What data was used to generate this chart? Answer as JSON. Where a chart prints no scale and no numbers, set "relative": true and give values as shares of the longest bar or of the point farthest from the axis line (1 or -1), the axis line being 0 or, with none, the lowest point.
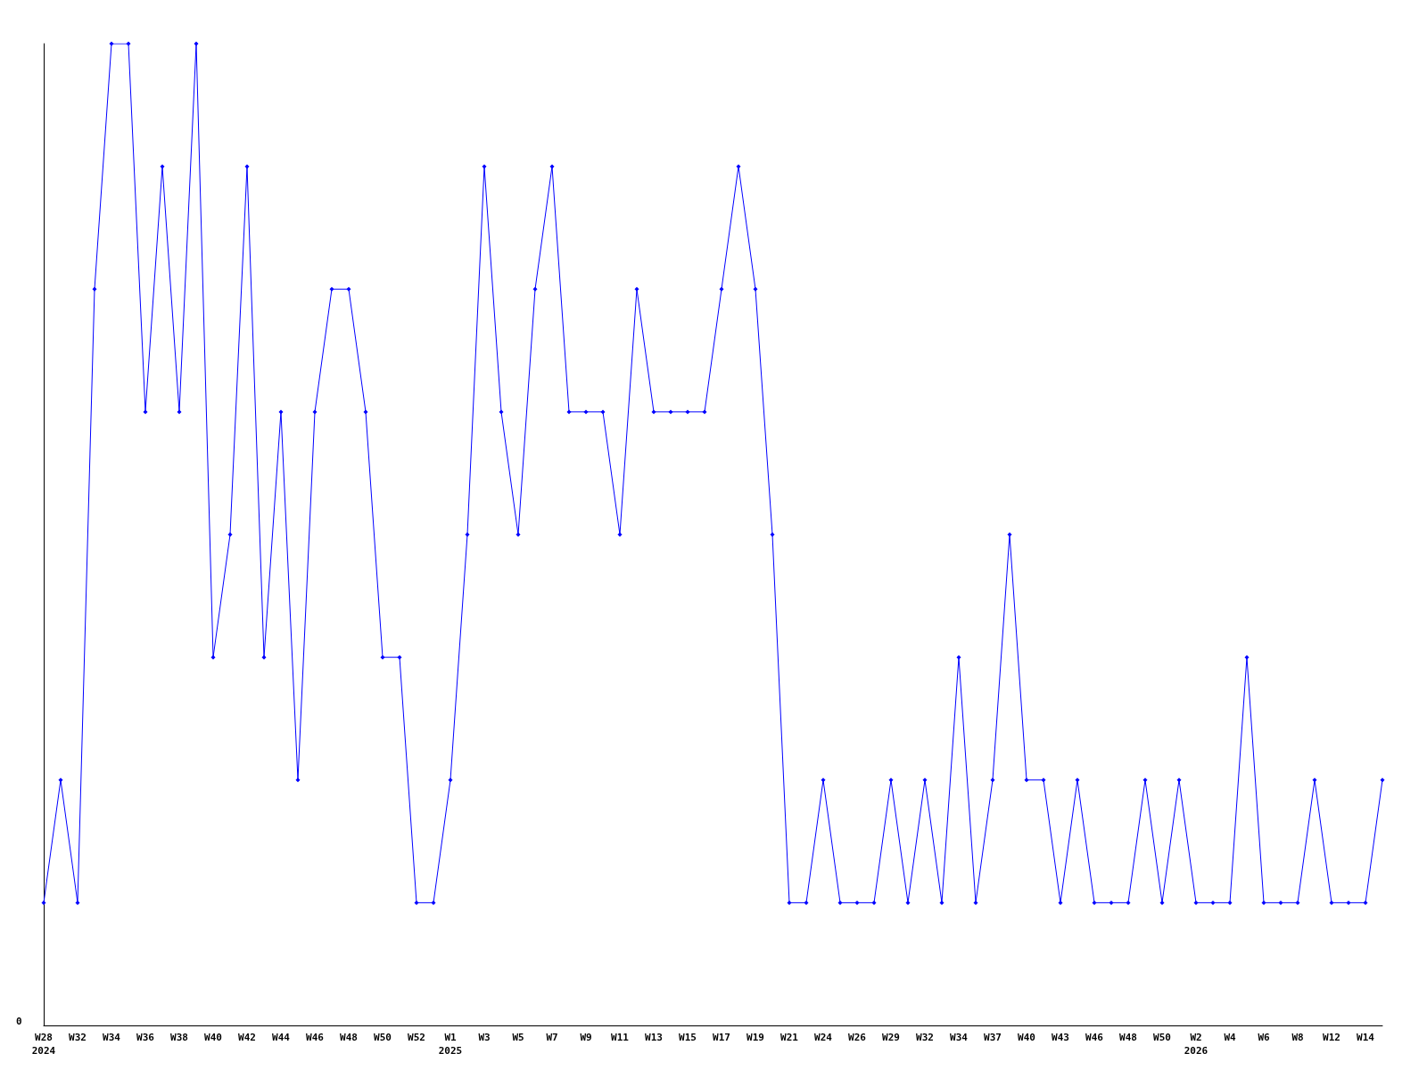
{
  "chart_data": {
    "type": "line",
    "relative": true,
    "grid": false,
    "marker": "diamond",
    "line_style": "solid",
    "annotations": [
      "0"
    ],
    "categories": [
      "W28\n2024",
      null,
      "W32",
      null,
      "W34",
      null,
      "W36",
      null,
      "W38",
      null,
      "W40",
      null,
      "W42",
      null,
      "W44",
      null,
      "W46",
      null,
      "W48",
      null,
      "W50",
      null,
      "W52",
      null,
      "W1\n2025",
      null,
      "W3",
      null,
      "W5",
      null,
      "W7",
      null,
      "W9",
      null,
      "W11",
      null,
      "W13",
      null,
      "W15",
      null,
      "W17",
      null,
      "W19",
      null,
      "W21",
      null,
      "W24",
      null,
      "W26",
      null,
      "W29",
      null,
      "W32",
      null,
      "W34",
      null,
      "W37",
      null,
      "W40",
      null,
      "W43",
      null,
      "W46",
      null,
      "W48",
      null,
      "W50",
      null,
      "W2\n2026",
      null,
      "W4",
      null,
      "W6",
      null,
      "W8",
      null,
      "W12",
      null,
      "W14",
      null
    ],
    "series": [
      {
        "color": "#0000ff",
        "values": [
          0.125,
          0.25,
          0.125,
          0.75,
          1,
          1,
          0.625,
          0.875,
          0.625,
          1,
          0.375,
          0.5,
          0.875,
          0.375,
          0.625,
          0.25,
          0.625,
          0.75,
          0.75,
          0.625,
          0.375,
          0.375,
          0.125,
          0.125,
          0.25,
          0.5,
          0.875,
          0.625,
          0.5,
          0.75,
          0.875,
          0.625,
          0.625,
          0.625,
          0.5,
          0.75,
          0.625,
          0.625,
          0.625,
          0.625,
          0.75,
          0.875,
          0.75,
          0.5,
          0.125,
          0.125,
          0.25,
          0.125,
          0.125,
          0.125,
          0.25,
          0.125,
          0.25,
          0.125,
          0.375,
          0.125,
          0.25,
          0.5,
          0.25,
          0.25,
          0.125,
          0.25,
          0.125,
          0.125,
          0.125,
          0.25,
          0.125,
          0.25,
          0.125,
          0.125,
          0.125,
          0.375,
          0.125,
          0.125,
          0.125,
          0.25,
          0.125,
          0.125,
          0.125,
          0.25
        ]
      }
    ]
  }
}
